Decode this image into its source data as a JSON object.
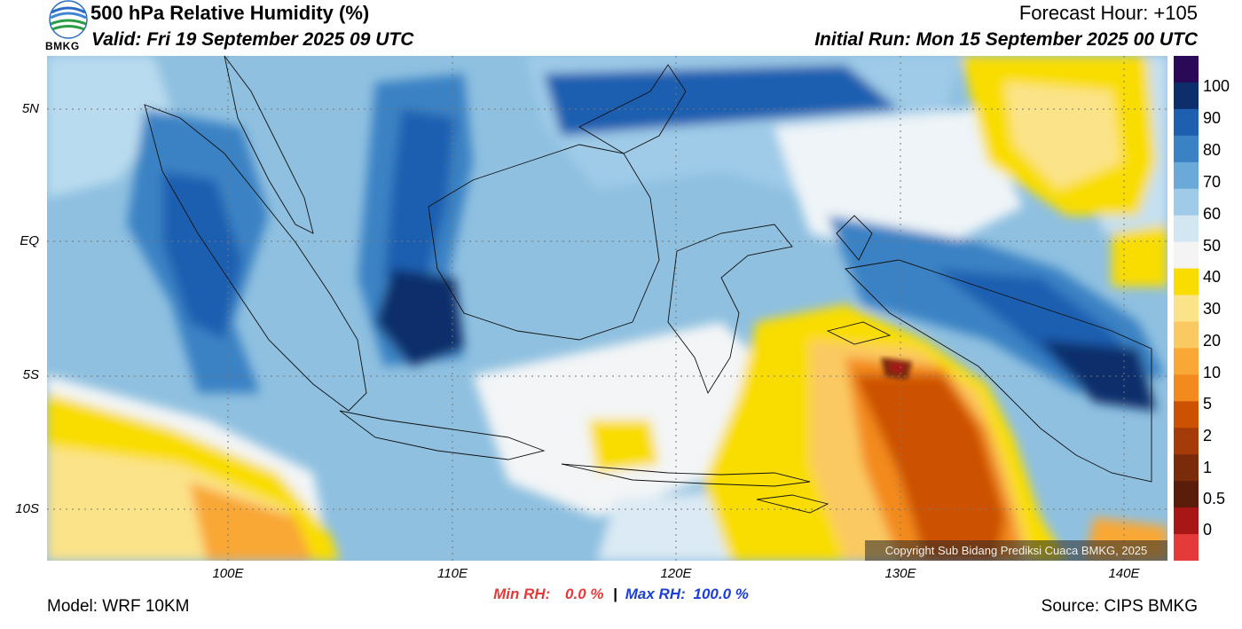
{
  "header": {
    "title": "500 hPa Relative Humidity (%)",
    "valid": "Valid: Fri 19 September 2025 09 UTC",
    "forecast_hour": "Forecast Hour: +105",
    "initial_run": "Initial Run: Mon 15 September 2025 00 UTC",
    "logo_text": "BMKG"
  },
  "axes": {
    "lat_ticks": [
      "5N",
      "EQ",
      "5S",
      "10S"
    ],
    "lon_ticks": [
      "100E",
      "110E",
      "120E",
      "130E",
      "140E"
    ]
  },
  "stats": {
    "min_label": "Min RH:",
    "min_value": "0.0 %",
    "separator": "|",
    "max_label": "Max RH:",
    "max_value": "100.0 %"
  },
  "footer": {
    "model": "Model: WRF 10KM",
    "source": "Source: CIPS BMKG",
    "copyright": "Copyright Sub Bidang Prediksi Cuaca BMKG, 2025"
  },
  "colorbar": {
    "labels": [
      "100",
      "90",
      "80",
      "70",
      "60",
      "50",
      "40",
      "30",
      "20",
      "10",
      "5",
      "2",
      "1",
      "0.5",
      "0"
    ],
    "colors": [
      "#2a0a57",
      "#0d2d6b",
      "#1f5fb0",
      "#3b82c4",
      "#6aa9d8",
      "#9fcbe8",
      "#d3e7f3",
      "#f4f4f4",
      "#f9dd00",
      "#fbe38a",
      "#fbc962",
      "#f9a735",
      "#f38a1e",
      "#cc5100",
      "#a43b08",
      "#7a2b0a",
      "#5a1d0a",
      "#a81616",
      "#e43a3a"
    ]
  }
}
